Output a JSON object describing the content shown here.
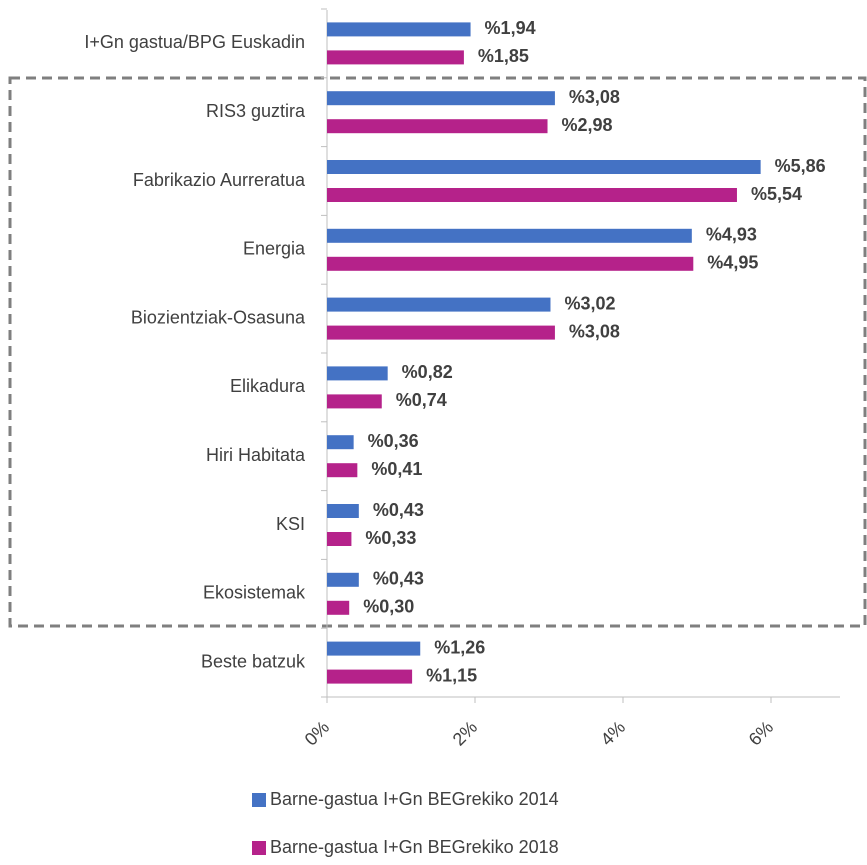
{
  "chart_data": {
    "type": "bar",
    "orientation": "horizontal",
    "categories": [
      "I+Gn gastua/BPG Euskadin",
      "RIS3 guztira",
      "Fabrikazio Aurreratua",
      "Energia",
      "Biozientziak-Osasuna",
      "Elikadura",
      "Hiri Habitata",
      "KSI",
      "Ekosistemak",
      "Beste batzuk"
    ],
    "series": [
      {
        "name": "Barne-gastua I+Gn BEGrekiko 2014",
        "color": "#4472c4",
        "values": [
          1.94,
          3.08,
          5.86,
          4.93,
          3.02,
          0.82,
          0.36,
          0.43,
          0.43,
          1.26
        ],
        "value_labels": [
          "%1,94",
          "%3,08",
          "%5,86",
          "%4,93",
          "%3,02",
          "%0,82",
          "%0,36",
          "%0,43",
          "%0,43",
          "%1,26"
        ]
      },
      {
        "name": "Barne-gastua I+Gn BEGrekiko 2018",
        "color": "#b5228a",
        "values": [
          1.85,
          2.98,
          5.54,
          4.95,
          3.08,
          0.74,
          0.41,
          0.33,
          0.3,
          1.15
        ],
        "value_labels": [
          "%1,85",
          "%2,98",
          "%5,54",
          "%4,95",
          "%3,08",
          "%0,74",
          "%0,41",
          "%0,33",
          "%0,30",
          "%1,15"
        ]
      }
    ],
    "xlim": [
      0,
      7
    ],
    "xticks": [
      {
        "value": 0,
        "label": "0%"
      },
      {
        "value": 2,
        "label": "2%"
      },
      {
        "value": 4,
        "label": "4%"
      },
      {
        "value": 6,
        "label": "6%"
      }
    ],
    "legend": "bottom"
  }
}
